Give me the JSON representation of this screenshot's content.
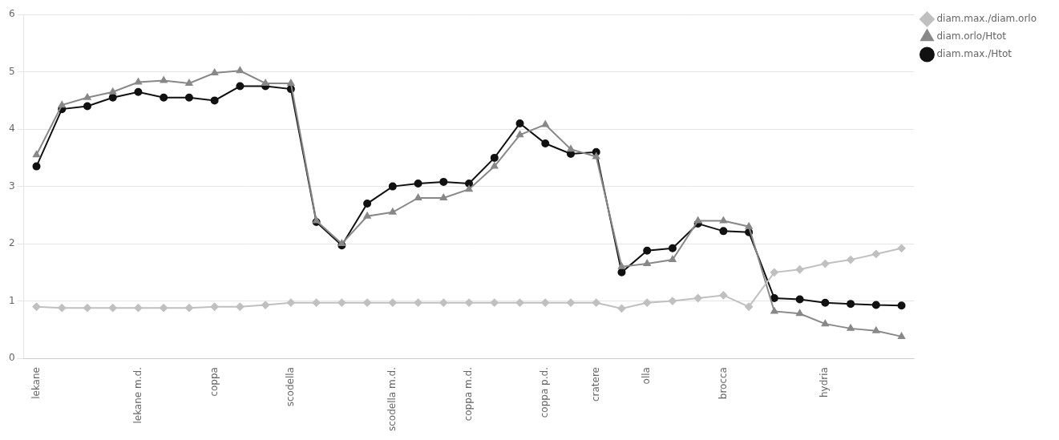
{
  "chart_data": {
    "type": "line",
    "categories": [
      "lekane",
      null,
      null,
      null,
      "lekane m.d.",
      null,
      null,
      "coppa",
      null,
      null,
      "scodella",
      null,
      null,
      null,
      "scodella m.d.",
      null,
      null,
      "coppa m.d.",
      null,
      null,
      "coppa p.d.",
      null,
      "cratere",
      null,
      "olla",
      null,
      null,
      "brocca",
      null,
      null,
      null,
      "hydria",
      null,
      null,
      null
    ],
    "series": [
      {
        "name": "diam.max./diam.orlo",
        "color": "#c0c0c0",
        "marker": "diamond",
        "values": [
          0.9,
          0.88,
          0.88,
          0.88,
          0.88,
          0.88,
          0.88,
          0.9,
          0.9,
          0.93,
          0.97,
          0.97,
          0.97,
          0.97,
          0.97,
          0.97,
          0.97,
          0.97,
          0.97,
          0.97,
          0.97,
          0.97,
          0.97,
          0.87,
          0.97,
          1.0,
          1.05,
          1.1,
          0.9,
          1.5,
          1.55,
          1.65,
          1.72,
          1.82,
          1.92
        ]
      },
      {
        "name": "diam.orlo/Htot",
        "color": "#888888",
        "marker": "triangle",
        "values": [
          3.55,
          4.42,
          4.55,
          4.65,
          4.82,
          4.85,
          4.8,
          4.98,
          5.02,
          4.8,
          4.8,
          2.4,
          2.0,
          2.48,
          2.55,
          2.8,
          2.8,
          2.95,
          3.35,
          3.9,
          4.08,
          3.65,
          3.52,
          1.6,
          1.65,
          1.72,
          2.4,
          2.4,
          2.3,
          0.82,
          0.78,
          0.6,
          0.52,
          0.48,
          0.38
        ]
      },
      {
        "name": "diam.max./Htot",
        "color": "#111111",
        "marker": "circle",
        "values": [
          3.35,
          4.35,
          4.4,
          4.55,
          4.65,
          4.55,
          4.55,
          4.5,
          4.75,
          4.75,
          4.7,
          2.38,
          1.97,
          2.7,
          3.0,
          3.05,
          3.08,
          3.05,
          3.5,
          4.1,
          3.75,
          3.57,
          3.6,
          1.5,
          1.88,
          1.92,
          2.35,
          2.22,
          2.2,
          1.05,
          1.03,
          0.97,
          0.95,
          0.93,
          0.92
        ]
      }
    ],
    "ylim": [
      0,
      6
    ],
    "yticks": [
      0,
      1,
      2,
      3,
      4,
      5,
      6
    ],
    "grid": "y",
    "legend": "right"
  }
}
